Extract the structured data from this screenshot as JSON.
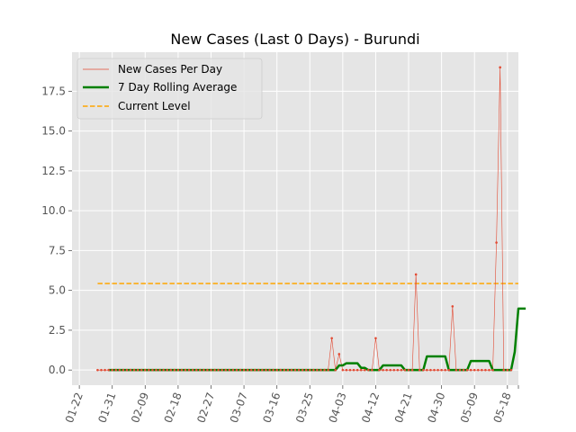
{
  "chart_data": {
    "type": "line",
    "title": "New Cases (Last 0 Days) - Burundi",
    "xlabel": "",
    "ylabel": "",
    "grid": true,
    "legend_position": "top-left",
    "x_start": "01-22",
    "x_ticks": [
      "01-22",
      "01-31",
      "02-09",
      "02-18",
      "02-27",
      "03-07",
      "03-16",
      "03-25",
      "04-03",
      "04-12",
      "04-21",
      "04-30",
      "05-09",
      "05-18"
    ],
    "xlim": [
      "01-20",
      "05-21"
    ],
    "y_ticks": [
      0.0,
      2.5,
      5.0,
      7.5,
      10.0,
      12.5,
      15.0,
      17.5
    ],
    "ylim": [
      -0.95,
      19.95
    ],
    "current_level": 5.43,
    "current_level_span": [
      "01-27",
      "05-21"
    ],
    "series": [
      {
        "name": "New Cases Per Day",
        "color": "#E24A33",
        "x_start": "01-27",
        "values": [
          0,
          0,
          0,
          0,
          0,
          0,
          0,
          0,
          0,
          0,
          0,
          0,
          0,
          0,
          0,
          0,
          0,
          0,
          0,
          0,
          0,
          0,
          0,
          0,
          0,
          0,
          0,
          0,
          0,
          0,
          0,
          0,
          0,
          0,
          0,
          0,
          0,
          0,
          0,
          0,
          0,
          0,
          0,
          0,
          0,
          0,
          0,
          0,
          0,
          0,
          0,
          0,
          0,
          0,
          0,
          0,
          0,
          0,
          0,
          0,
          0,
          0,
          0,
          0,
          2,
          0,
          1,
          0,
          0,
          0,
          0,
          0,
          0,
          0,
          0,
          0,
          2,
          0,
          0,
          0,
          0,
          0,
          0,
          0,
          0,
          0,
          0,
          6,
          0,
          0,
          0,
          0,
          0,
          0,
          0,
          0,
          0,
          4,
          0,
          0,
          0,
          0,
          0,
          0,
          0,
          0,
          0,
          0,
          0,
          8,
          19,
          0,
          0,
          0
        ]
      },
      {
        "name": "7 Day Rolling Average",
        "color": "#008000",
        "x_start": "01-30",
        "values": [
          0,
          0,
          0,
          0,
          0,
          0,
          0,
          0,
          0,
          0,
          0,
          0,
          0,
          0,
          0,
          0,
          0,
          0,
          0,
          0,
          0,
          0,
          0,
          0,
          0,
          0,
          0,
          0,
          0,
          0,
          0,
          0,
          0,
          0,
          0,
          0,
          0,
          0,
          0,
          0,
          0,
          0,
          0,
          0,
          0,
          0,
          0,
          0,
          0,
          0,
          0,
          0,
          0,
          0,
          0,
          0,
          0,
          0,
          0,
          0,
          0,
          0,
          0,
          0.29,
          0.29,
          0.43,
          0.43,
          0.43,
          0.43,
          0.14,
          0.14,
          0,
          0,
          0,
          0,
          0.29,
          0.29,
          0.29,
          0.29,
          0.29,
          0.29,
          0,
          0,
          0,
          0,
          0,
          0,
          0.86,
          0.86,
          0.86,
          0.86,
          0.86,
          0.86,
          0,
          0,
          0,
          0,
          0,
          0,
          0.57,
          0.57,
          0.57,
          0.57,
          0.57,
          0.57,
          0,
          0,
          0,
          0,
          0,
          0,
          1.14,
          3.86,
          3.86,
          3.86
        ]
      },
      {
        "name": "Current Level",
        "color": "#FFA500",
        "value": 5.43
      }
    ]
  }
}
